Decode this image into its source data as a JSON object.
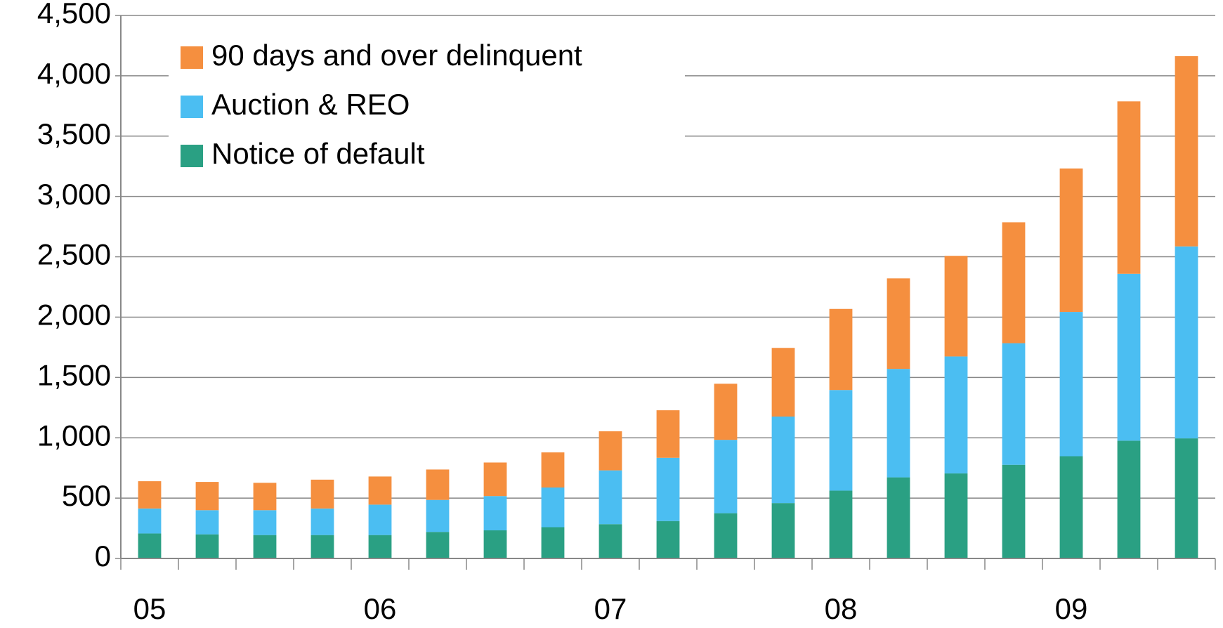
{
  "chart_data": {
    "type": "stacked_bar",
    "categories": [
      "05",
      null,
      null,
      null,
      "06",
      null,
      null,
      null,
      "07",
      null,
      null,
      null,
      "08",
      null,
      null,
      null,
      "09",
      null,
      null
    ],
    "series": [
      {
        "name": "Notice of default",
        "color": "#2aa083",
        "values": [
          207,
          200,
          194,
          194,
          194,
          220,
          233,
          259,
          284,
          310,
          375,
          459,
          562,
          672,
          705,
          776,
          847,
          976,
          995
        ]
      },
      {
        "name": "Auction & REO",
        "color": "#4bbef2",
        "values": [
          207,
          200,
          206,
          220,
          252,
          265,
          284,
          329,
          446,
          524,
          608,
          717,
          834,
          899,
          969,
          1008,
          1196,
          1383,
          1591
        ]
      },
      {
        "name": "90 days and over delinquent",
        "color": "#f58f3f",
        "values": [
          226,
          234,
          227,
          239,
          233,
          252,
          278,
          291,
          324,
          394,
          465,
          569,
          672,
          750,
          834,
          1002,
          1189,
          1429,
          1577
        ]
      }
    ],
    "ylim": [
      0,
      4500
    ],
    "yticks": [
      0,
      500,
      {
        "value": 1000,
        "label": "1,000"
      },
      {
        "value": 1500,
        "label": "1,500"
      },
      {
        "value": 2000,
        "label": "2,000"
      },
      {
        "value": 2500,
        "label": "2,500"
      },
      {
        "value": 3000,
        "label": "3,000"
      },
      {
        "value": 3500,
        "label": "3,500"
      },
      {
        "value": 4000,
        "label": "4,000"
      },
      {
        "value": 4500,
        "label": "4,500"
      }
    ],
    "grid": true,
    "legend": "upper left"
  }
}
